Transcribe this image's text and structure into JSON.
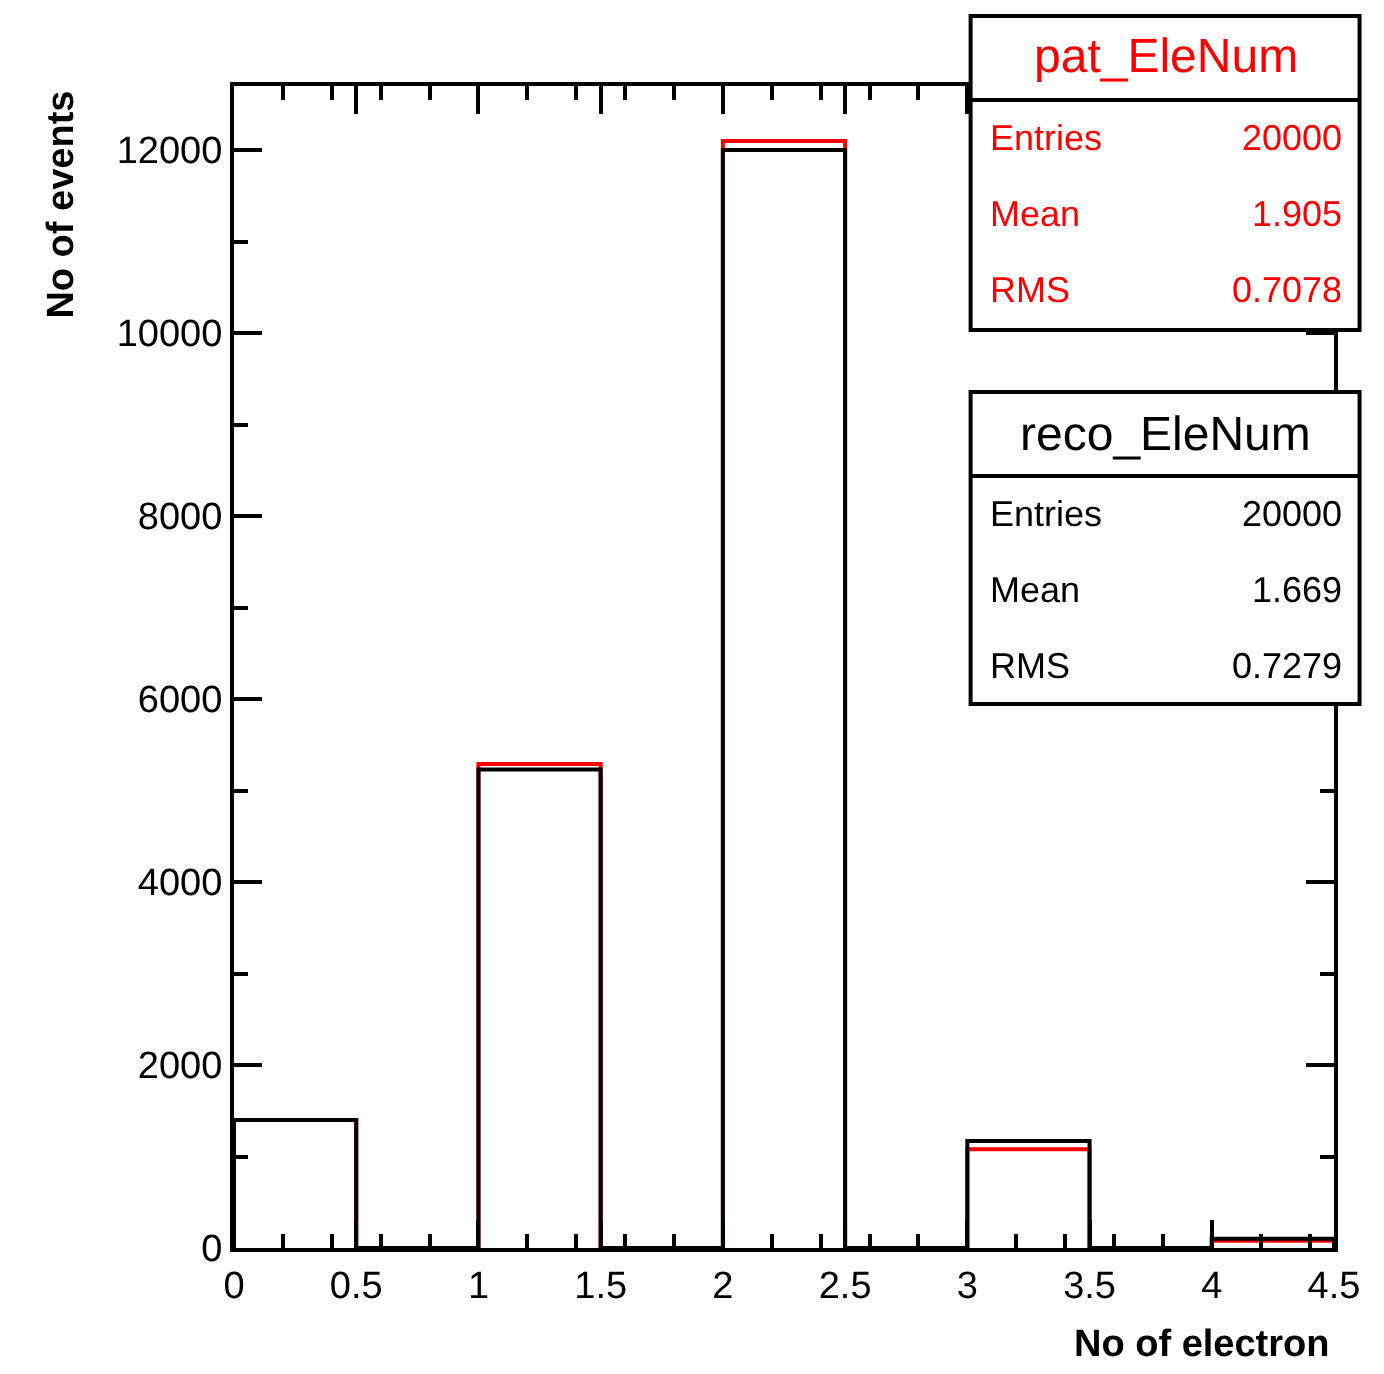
{
  "chart_data": {
    "type": "histogram",
    "xlabel": "No of electron",
    "ylabel": "No of events",
    "bins": [
      0,
      0.5,
      1,
      1.5,
      2,
      2.5,
      3,
      3.5,
      4,
      4.5
    ],
    "series": [
      {
        "name": "pat_EleNum",
        "color": "#ff0000",
        "values": [
          1400,
          0,
          5290,
          0,
          12100,
          0,
          1080,
          0,
          80
        ]
      },
      {
        "name": "reco_EleNum",
        "color": "#000000",
        "values": [
          1400,
          0,
          5230,
          0,
          12000,
          0,
          1170,
          0,
          100
        ]
      }
    ],
    "annotations": [
      "Entries 20000",
      "Mean 1.905",
      "RMS 0.7078",
      "Entries 20000",
      "Mean 1.669",
      "RMS 0.7279"
    ],
    "xlim": [
      0,
      4.5
    ],
    "xticks": [
      0,
      0.5,
      1,
      1.5,
      2,
      2.5,
      3,
      3.5,
      4,
      4.5
    ],
    "ylim": [
      0,
      12700
    ],
    "yticks": [
      0,
      2000,
      4000,
      6000,
      8000,
      10000,
      12000
    ],
    "legend": "top right"
  }
}
